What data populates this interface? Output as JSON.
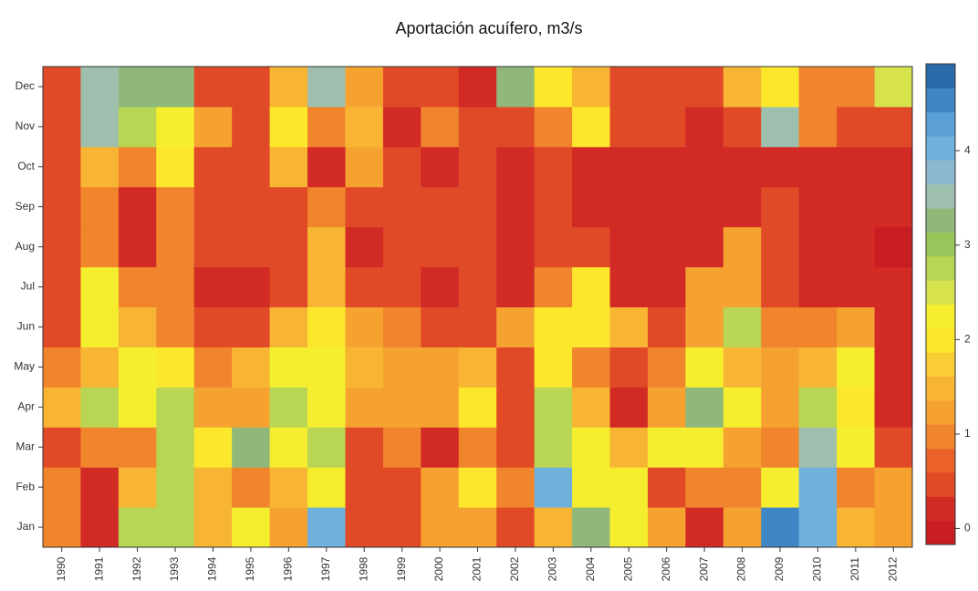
{
  "chart_data": {
    "type": "heatmap",
    "title": "Aportación acuífero, m3/s",
    "x": [
      "1990",
      "1991",
      "1992",
      "1993",
      "1994",
      "1995",
      "1996",
      "1997",
      "1998",
      "1999",
      "2000",
      "2001",
      "2002",
      "2003",
      "2004",
      "2005",
      "2006",
      "2007",
      "2008",
      "2009",
      "2010",
      "2011",
      "2012"
    ],
    "y": [
      "Jan",
      "Feb",
      "Mar",
      "Apr",
      "May",
      "Jun",
      "Jul",
      "Aug",
      "Sep",
      "Oct",
      "Nov",
      "Dec"
    ],
    "values": [
      [
        0.85,
        0.1,
        2.7,
        2.7,
        1.55,
        2.3,
        1.2,
        4.1,
        0.45,
        0.45,
        1.2,
        1.2,
        0.45,
        1.55,
        3.2,
        2.3,
        1.2,
        0.1,
        1.2,
        4.6,
        4.1,
        1.55,
        1.2
      ],
      [
        0.85,
        0.1,
        1.55,
        2.7,
        1.55,
        0.85,
        1.55,
        2.3,
        0.45,
        0.45,
        1.2,
        1.9,
        0.85,
        4.1,
        2.3,
        2.3,
        0.45,
        0.85,
        0.85,
        2.3,
        4.1,
        0.85,
        1.2
      ],
      [
        0.45,
        0.85,
        0.85,
        2.7,
        1.9,
        3.2,
        2.3,
        2.7,
        0.45,
        0.85,
        0.1,
        0.85,
        0.45,
        2.7,
        2.3,
        1.55,
        2.3,
        2.3,
        1.2,
        0.85,
        3.5,
        2.3,
        0.45
      ],
      [
        1.55,
        2.7,
        2.3,
        2.7,
        1.2,
        1.2,
        2.7,
        2.3,
        1.2,
        1.2,
        1.2,
        1.9,
        0.45,
        2.7,
        1.55,
        0.1,
        1.2,
        3.2,
        2.3,
        1.2,
        2.7,
        1.9,
        0.1
      ],
      [
        0.85,
        1.55,
        2.3,
        1.9,
        0.85,
        1.55,
        2.3,
        2.3,
        1.55,
        1.2,
        1.2,
        1.55,
        0.45,
        1.9,
        0.85,
        0.45,
        0.85,
        2.3,
        1.55,
        1.2,
        1.55,
        2.3,
        0.1
      ],
      [
        0.45,
        2.3,
        1.55,
        0.85,
        0.45,
        0.45,
        1.55,
        1.9,
        1.2,
        0.85,
        0.45,
        0.45,
        1.2,
        1.9,
        1.9,
        1.55,
        0.45,
        1.2,
        2.7,
        0.85,
        0.85,
        1.2,
        0.1
      ],
      [
        0.45,
        2.3,
        0.85,
        0.85,
        0.1,
        0.1,
        0.45,
        1.55,
        0.45,
        0.45,
        0.1,
        0.45,
        0.1,
        0.85,
        1.9,
        0.1,
        0.1,
        1.2,
        1.2,
        0.45,
        0.1,
        0.1,
        0.1
      ],
      [
        0.45,
        0.85,
        0.1,
        0.85,
        0.45,
        0.45,
        0.45,
        1.55,
        0.1,
        0.45,
        0.45,
        0.45,
        0.1,
        0.45,
        0.45,
        0.1,
        0.1,
        0.1,
        1.2,
        0.45,
        0.1,
        0.1,
        0.0
      ],
      [
        0.45,
        0.85,
        0.1,
        0.85,
        0.45,
        0.45,
        0.45,
        0.85,
        0.45,
        0.45,
        0.45,
        0.45,
        0.1,
        0.45,
        0.1,
        0.1,
        0.1,
        0.1,
        0.1,
        0.45,
        0.1,
        0.1,
        0.1
      ],
      [
        0.45,
        1.55,
        0.85,
        1.9,
        0.45,
        0.45,
        1.55,
        0.1,
        1.2,
        0.45,
        0.1,
        0.45,
        0.1,
        0.45,
        0.1,
        0.1,
        0.1,
        0.1,
        0.1,
        0.1,
        0.1,
        0.1,
        0.1
      ],
      [
        0.45,
        3.5,
        2.7,
        2.3,
        1.2,
        0.45,
        1.9,
        0.85,
        1.55,
        0.1,
        0.85,
        0.45,
        0.45,
        0.85,
        1.9,
        0.45,
        0.45,
        0.1,
        0.45,
        3.5,
        0.85,
        0.45,
        0.45
      ],
      [
        0.45,
        3.5,
        3.2,
        3.2,
        0.45,
        0.45,
        1.55,
        3.5,
        1.2,
        0.45,
        0.45,
        0.1,
        3.2,
        1.9,
        1.55,
        0.45,
        0.45,
        0.45,
        1.55,
        1.9,
        0.85,
        0.85,
        2.6
      ]
    ],
    "colors": [
      "#c81e23",
      "#d22a25",
      "#e14a27",
      "#ea6229",
      "#f0852d",
      "#f5a231",
      "#f8b533",
      "#fbcd34",
      "#fce72d",
      "#f4ee2e",
      "#d6e34c",
      "#b8d653",
      "#98c65a",
      "#8fb87a",
      "#9ebfae",
      "#8db9cf",
      "#6fb0dc",
      "#5a9fd6",
      "#3f86c4",
      "#2a6aab"
    ],
    "zlim": [
      -0.17,
      4.92
    ],
    "zticks": [
      0,
      1,
      2,
      3,
      4
    ]
  }
}
